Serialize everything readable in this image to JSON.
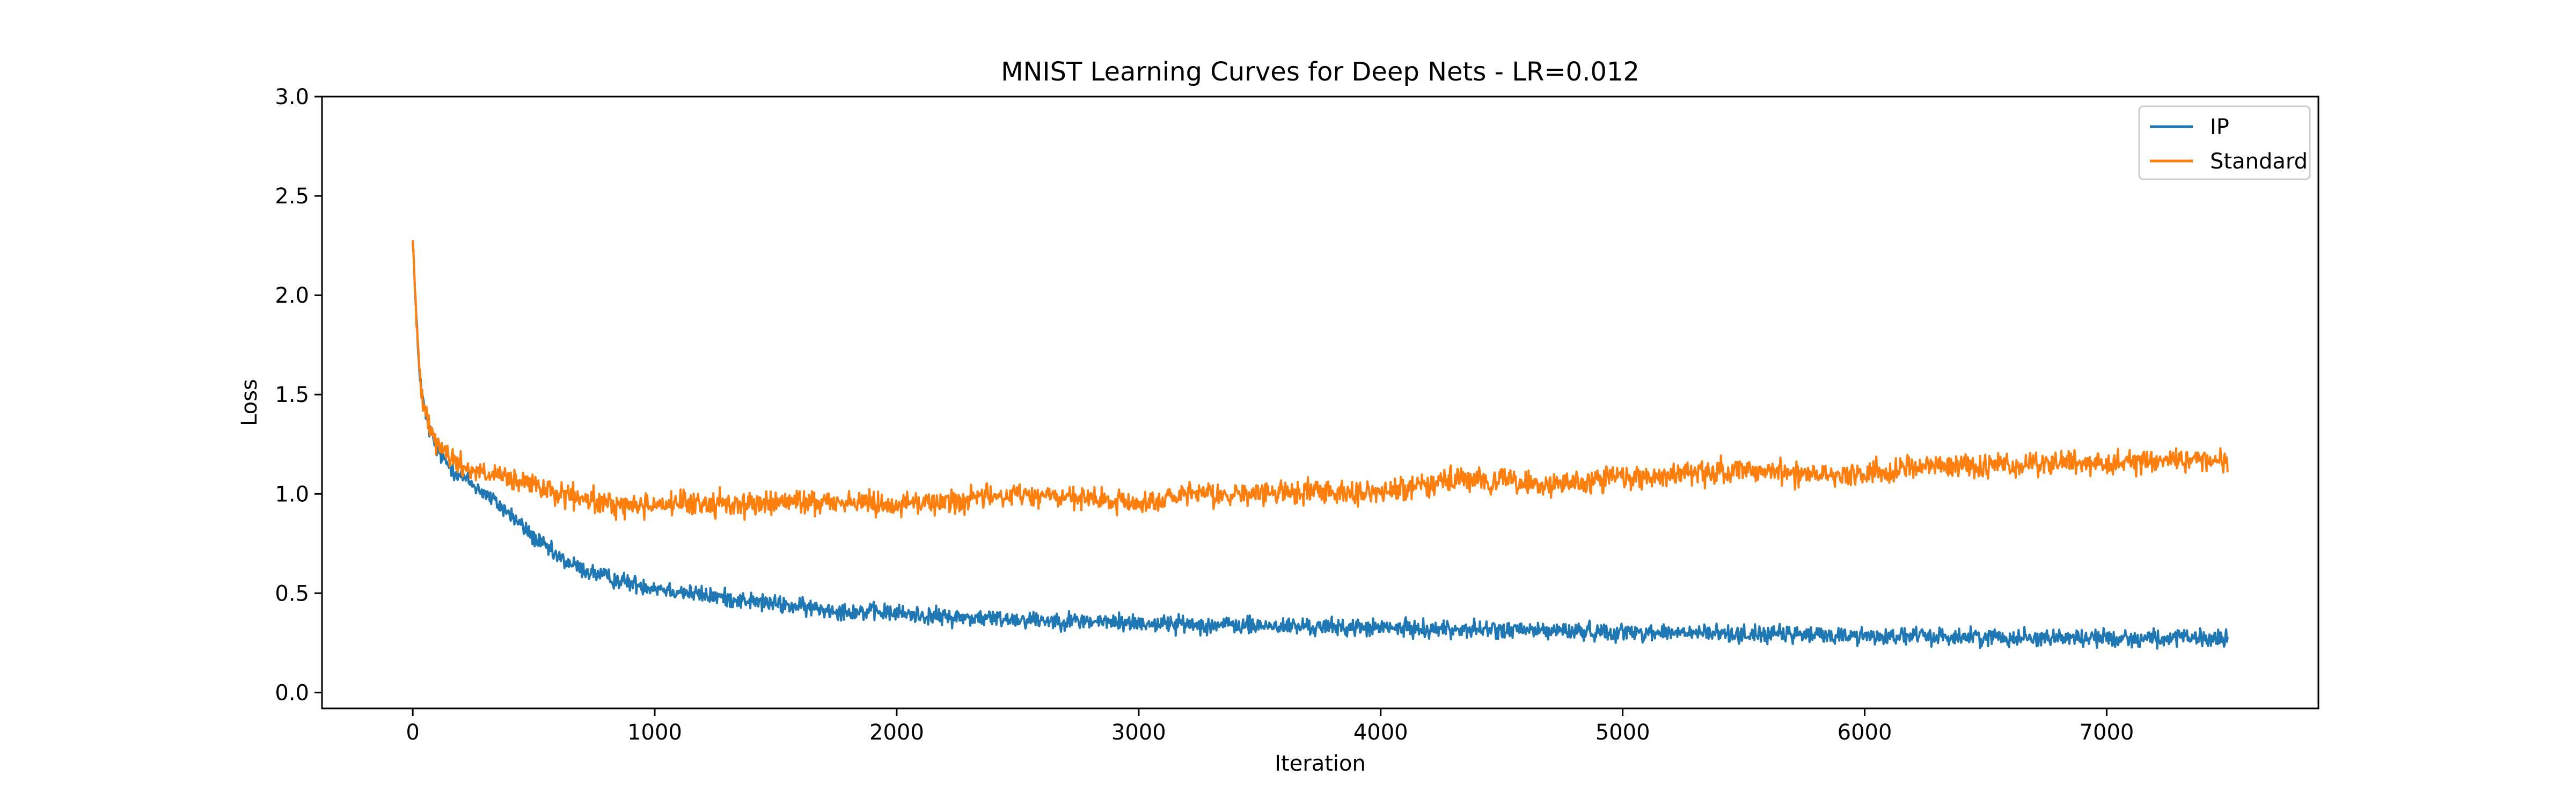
{
  "chart_data": {
    "type": "line",
    "title": "MNIST Learning Curves for Deep Nets - LR=0.012",
    "xlabel": "Iteration",
    "ylabel": "Loss",
    "xlim": [
      -375,
      7875
    ],
    "ylim": [
      -0.08,
      3.0
    ],
    "xticks": [
      0,
      1000,
      2000,
      3000,
      4000,
      5000,
      6000,
      7000
    ],
    "yticks": [
      0.0,
      0.5,
      1.0,
      1.5,
      2.0,
      2.5,
      3.0
    ],
    "xtick_labels": [
      "0",
      "1000",
      "2000",
      "3000",
      "4000",
      "5000",
      "6000",
      "7000"
    ],
    "ytick_labels": [
      "0.0",
      "0.5",
      "1.0",
      "1.5",
      "2.0",
      "2.5",
      "3.0"
    ],
    "grid": false,
    "legend_position": "top-right",
    "series": [
      {
        "name": "IP",
        "color": "#1f77b4",
        "noise": 0.022,
        "x": [
          0,
          10,
          20,
          30,
          40,
          60,
          80,
          100,
          150,
          200,
          300,
          400,
          500,
          600,
          700,
          800,
          900,
          1000,
          1200,
          1400,
          1600,
          1800,
          2000,
          2200,
          2500,
          3000,
          3500,
          4000,
          4500,
          5000,
          5500,
          6000,
          6500,
          7000,
          7500
        ],
        "y": [
          2.3,
          2.0,
          1.75,
          1.6,
          1.48,
          1.36,
          1.28,
          1.22,
          1.14,
          1.09,
          1.0,
          0.9,
          0.78,
          0.68,
          0.62,
          0.58,
          0.55,
          0.53,
          0.49,
          0.46,
          0.43,
          0.41,
          0.4,
          0.38,
          0.37,
          0.35,
          0.335,
          0.325,
          0.315,
          0.305,
          0.295,
          0.285,
          0.28,
          0.275,
          0.27
        ]
      },
      {
        "name": "Standard",
        "color": "#ff7f0e",
        "noise": 0.03,
        "x": [
          0,
          10,
          20,
          30,
          40,
          60,
          80,
          100,
          150,
          200,
          300,
          400,
          500,
          600,
          700,
          800,
          900,
          1000,
          1200,
          1400,
          1600,
          1800,
          2000,
          2200,
          2500,
          2800,
          3000,
          3200,
          3500,
          3800,
          4000,
          4200,
          4500,
          4700,
          5000,
          5300,
          5500,
          5800,
          6000,
          6200,
          6500,
          6800,
          7000,
          7300,
          7500
        ],
        "y": [
          2.3,
          2.0,
          1.75,
          1.6,
          1.5,
          1.4,
          1.32,
          1.26,
          1.19,
          1.14,
          1.1,
          1.07,
          1.04,
          1.0,
          0.97,
          0.95,
          0.94,
          0.95,
          0.95,
          0.95,
          0.96,
          0.96,
          0.95,
          0.96,
          1.0,
          0.97,
          0.95,
          0.99,
          1.0,
          1.02,
          1.0,
          1.06,
          1.07,
          1.04,
          1.08,
          1.1,
          1.12,
          1.1,
          1.1,
          1.14,
          1.14,
          1.15,
          1.16,
          1.17,
          1.17
        ]
      }
    ]
  }
}
